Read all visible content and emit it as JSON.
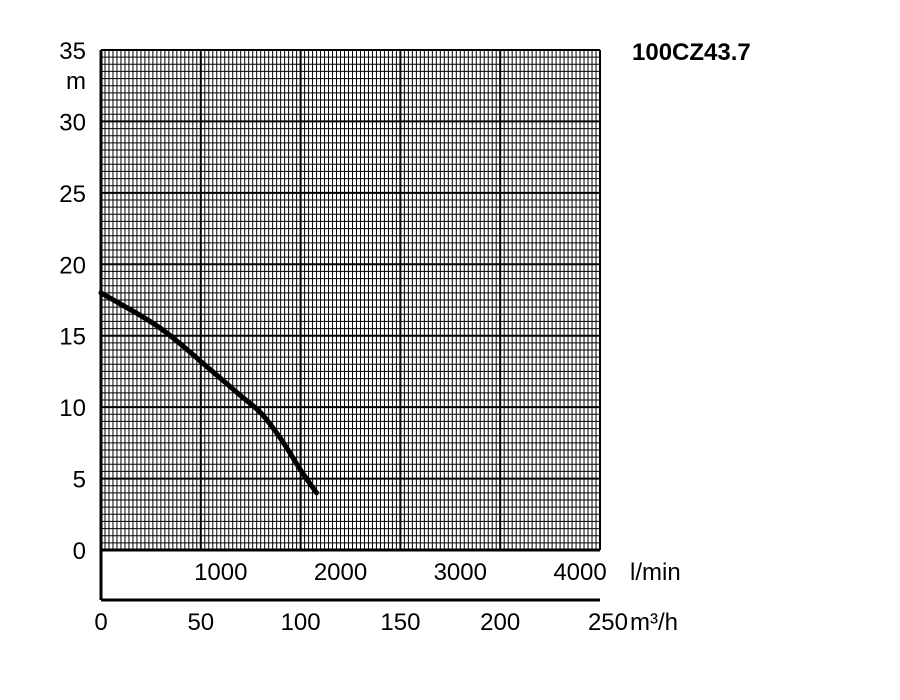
{
  "chart_data": {
    "type": "line",
    "title": "100CZ43.7",
    "y_unit": "m",
    "x_unit_flow_lpm": "l/min",
    "x_unit_flow_m3h": "m³/h",
    "ylim": [
      0,
      35
    ],
    "xlim_m3h": [
      0,
      250
    ],
    "xlim_lpm": [
      0,
      4166.7
    ],
    "y_ticks": [
      "0",
      "5",
      "10",
      "15",
      "20",
      "25",
      "30",
      "35"
    ],
    "x_ticks_m3h": [
      "0",
      "50",
      "100",
      "150",
      "200",
      "250"
    ],
    "x_ticks_lpm": [
      "1000",
      "2000",
      "3000",
      "4000"
    ],
    "grid": true,
    "series": [
      {
        "x": [
          0,
          10,
          20,
          30,
          40,
          50,
          60,
          70,
          80,
          90,
          100,
          108
        ],
        "y": [
          18,
          17.2,
          16.4,
          15.5,
          14.4,
          13.2,
          12,
          10.8,
          9.6,
          7.8,
          5.6,
          4
        ]
      }
    ]
  }
}
